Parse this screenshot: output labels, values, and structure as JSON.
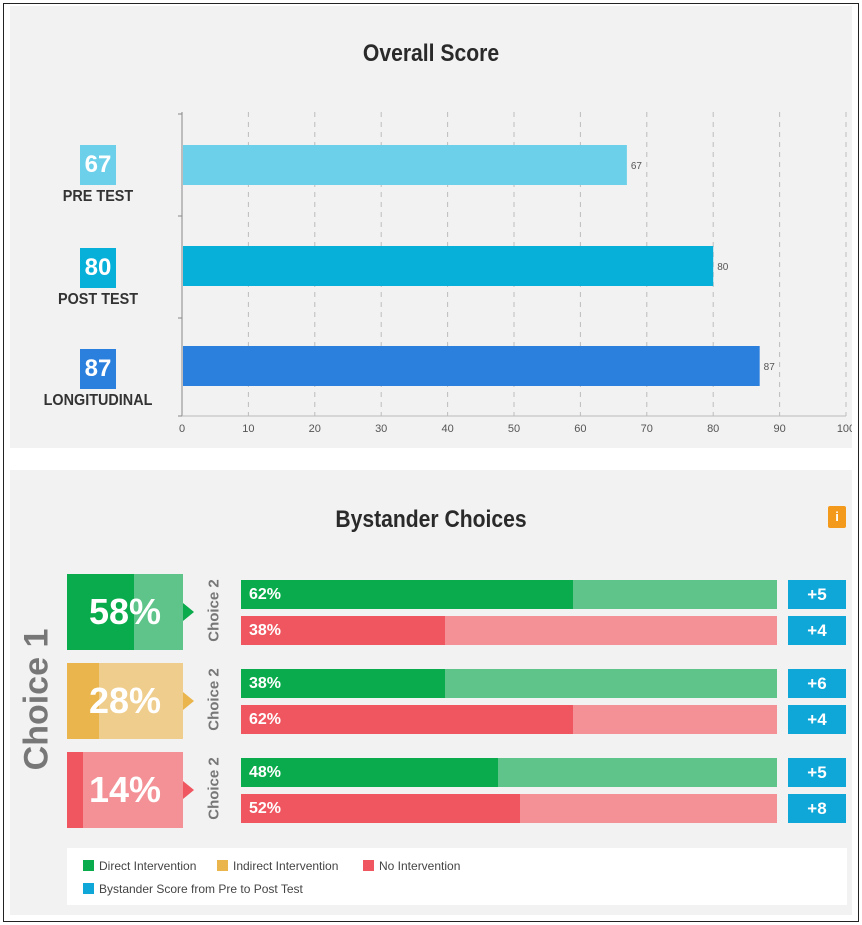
{
  "colors": {
    "pre": "#6dd0ea",
    "post": "#07b0d9",
    "longitudinal": "#2b7fdd",
    "green_dark": "#0aab4c",
    "green_light": "#5ec48a",
    "red_dark": "#f05660",
    "red_light": "#f39196",
    "yellow_dark": "#e9b54c",
    "yellow_light": "#efcd8d",
    "blue_badge": "#0fa6d8"
  },
  "chart_data": [
    {
      "type": "bar",
      "orientation": "horizontal",
      "title": "Overall Score",
      "categories": [
        "PRE TEST",
        "POST TEST",
        "LONGITUDINAL"
      ],
      "values": [
        67,
        80,
        87
      ],
      "value_labels": [
        "67",
        "80",
        "87"
      ],
      "xlim": [
        0,
        100
      ],
      "xticks": [
        "0",
        "10",
        "20",
        "30",
        "40",
        "50",
        "60",
        "70",
        "80",
        "90",
        "100"
      ],
      "grid": true
    },
    {
      "type": "bar",
      "orientation": "horizontal",
      "stacked": true,
      "title": "Bystander Choices",
      "outer_label": "Choice 1",
      "inner_label": "Choice 2",
      "groups": [
        {
          "choice1_percent": "58%",
          "choice1_value": 58,
          "color": "green",
          "rows": [
            {
              "label": "62%",
              "value": 62,
              "kind": "direct",
              "score": "+5"
            },
            {
              "label": "38%",
              "value": 38,
              "kind": "none",
              "score": "+4"
            }
          ]
        },
        {
          "choice1_percent": "28%",
          "choice1_value": 28,
          "color": "yellow",
          "rows": [
            {
              "label": "38%",
              "value": 38,
              "kind": "direct",
              "score": "+6"
            },
            {
              "label": "62%",
              "value": 62,
              "kind": "none",
              "score": "+4"
            }
          ]
        },
        {
          "choice1_percent": "14%",
          "choice1_value": 14,
          "color": "red",
          "rows": [
            {
              "label": "48%",
              "value": 48,
              "kind": "direct",
              "score": "+5"
            },
            {
              "label": "52%",
              "value": 52,
              "kind": "none",
              "score": "+8"
            }
          ]
        }
      ],
      "legend": [
        {
          "label": "Direct Intervention",
          "color": "#0aab4c"
        },
        {
          "label": "Indirect Intervention",
          "color": "#e9b54c"
        },
        {
          "label": "No Intervention",
          "color": "#f05660"
        },
        {
          "label": "Bystander Score from Pre to Post Test",
          "color": "#0fa6d8"
        }
      ],
      "info_icon": "i"
    }
  ]
}
